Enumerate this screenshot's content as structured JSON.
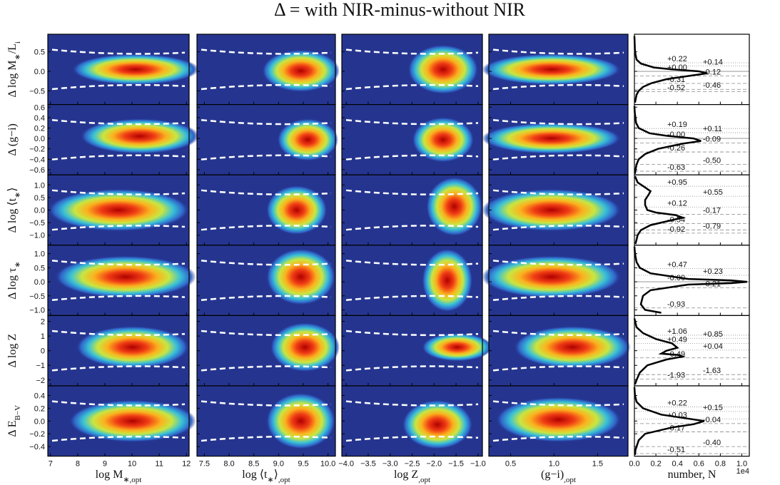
{
  "chart_data": {
    "type": "panel-grid",
    "title": "Δ = with NIR-minus-without NIR",
    "x_offset_label": "1e4",
    "columns": [
      {
        "xlabel": [
          "log M",
          "∗,opt"
        ],
        "xlim": [
          6.9,
          12.1
        ],
        "xticks": [
          7,
          8,
          9,
          10,
          11,
          12
        ]
      },
      {
        "xlabel": [
          "log ⟨t",
          "∗",
          "⟩",
          ",opt"
        ],
        "xlim": [
          7.35,
          10.15
        ],
        "xticks": [
          {
            "value": 7.5,
            "label": "7.5"
          },
          {
            "value": 8,
            "label": "8.0"
          },
          {
            "value": 8.5,
            "label": "8.5"
          },
          {
            "value": 9,
            "label": "9.0"
          },
          {
            "value": 9.5,
            "label": "9.5"
          },
          {
            "value": 10,
            "label": "10.0"
          }
        ]
      },
      {
        "xlabel": [
          "log Z",
          ",opt"
        ],
        "xlim": [
          -4.1,
          -0.9
        ],
        "xticks": [
          {
            "value": -4,
            "label": "−4.0"
          },
          {
            "value": -3.5,
            "label": "−3.5"
          },
          {
            "value": -3,
            "label": "−3.0"
          },
          {
            "value": -2.5,
            "label": "−2.5"
          },
          {
            "value": -2,
            "label": "−2.0"
          },
          {
            "value": -1.5,
            "label": "−1.5"
          },
          {
            "value": -1,
            "label": "−1.0"
          }
        ]
      },
      {
        "xlabel": [
          "(g−i)",
          ",opt"
        ],
        "xlim": [
          0.25,
          1.85
        ],
        "xticks": [
          {
            "value": 0.5,
            "label": "0.5"
          },
          {
            "value": 1,
            "label": "1.0"
          },
          {
            "value": 1.5,
            "label": "1.5"
          }
        ]
      },
      {
        "xlabel": [
          "number, N"
        ],
        "xlim": [
          0,
          1.07
        ],
        "xticks": [
          {
            "value": 0,
            "label": "0.0"
          },
          {
            "value": 0.2,
            "label": "0.2"
          },
          {
            "value": 0.4,
            "label": "0.4"
          },
          {
            "value": 0.6,
            "label": "0.6"
          },
          {
            "value": 0.8,
            "label": "0.8"
          },
          {
            "value": 1,
            "label": "1.0"
          }
        ]
      }
    ],
    "rows": [
      {
        "ylabel": [
          "Δ log M",
          "∗",
          "/L",
          "i"
        ],
        "ylim": [
          -0.85,
          0.95
        ],
        "yticks": [
          {
            "value": 0.5,
            "label": "0.5"
          },
          {
            "value": 0,
            "label": "0.0"
          },
          {
            "value": -0.5,
            "label": "−0.5"
          }
        ],
        "percentiles": [
          {
            "value": 0.22,
            "label": "+0.22"
          },
          {
            "value": 0.14,
            "label": "+0.14"
          },
          {
            "value": 0,
            "label": "+0.00"
          },
          {
            "value": -0.12,
            "label": "-0.12"
          },
          {
            "value": -0.31,
            "label": "-0.31"
          },
          {
            "value": -0.46,
            "label": "-0.46"
          },
          {
            "value": -0.52,
            "label": "-0.52"
          }
        ],
        "hist": {
          "y": [
            -0.8,
            -0.6,
            -0.5,
            -0.4,
            -0.3,
            -0.2,
            -0.1,
            -0.05,
            0,
            0.05,
            0.1,
            0.2,
            0.3,
            0.5,
            0.9
          ],
          "counts": [
            0.005,
            0.02,
            0.04,
            0.08,
            0.16,
            0.3,
            0.55,
            0.68,
            0.6,
            0.35,
            0.18,
            0.06,
            0.02,
            0.005,
            0
          ]
        }
      },
      {
        "ylabel": [
          "Δ (g−i)"
        ],
        "ylim": [
          -0.7,
          0.65
        ],
        "yticks": [
          {
            "value": 0.6,
            "label": "0.6"
          },
          {
            "value": 0.4,
            "label": "0.4"
          },
          {
            "value": 0.2,
            "label": "0.2"
          },
          {
            "value": 0,
            "label": "0.0"
          },
          {
            "value": -0.2,
            "label": "−0.2"
          },
          {
            "value": -0.4,
            "label": "−0.4"
          },
          {
            "value": -0.6,
            "label": "−0.6"
          }
        ],
        "percentiles": [
          {
            "value": 0.19,
            "label": "+0.19"
          },
          {
            "value": 0.11,
            "label": "+0.11"
          },
          {
            "value": 0,
            "label": "-0.00"
          },
          {
            "value": -0.09,
            "label": "-0.09"
          },
          {
            "value": -0.26,
            "label": "-0.26"
          },
          {
            "value": -0.5,
            "label": "-0.50"
          },
          {
            "value": -0.63,
            "label": "-0.63"
          }
        ],
        "hist": {
          "y": [
            -0.68,
            -0.6,
            -0.5,
            -0.4,
            -0.3,
            -0.2,
            -0.1,
            -0.05,
            0,
            0.05,
            0.1,
            0.2,
            0.3,
            0.5,
            0.62
          ],
          "counts": [
            0.005,
            0.01,
            0.02,
            0.04,
            0.1,
            0.22,
            0.45,
            0.62,
            0.55,
            0.3,
            0.14,
            0.04,
            0.015,
            0.003,
            0
          ]
        }
      },
      {
        "ylabel": [
          "Δ log ⟨t",
          "∗",
          "⟩"
        ],
        "ylim": [
          -1.4,
          1.4
        ],
        "yticks": [
          {
            "value": 1,
            "label": "1.0"
          },
          {
            "value": 0.5,
            "label": "0.5"
          },
          {
            "value": 0,
            "label": "0.0"
          },
          {
            "value": -0.5,
            "label": "−0.5"
          },
          {
            "value": -1,
            "label": "−1.0"
          }
        ],
        "percentiles": [
          {
            "value": 0.95,
            "label": "+0.95"
          },
          {
            "value": 0.55,
            "label": "+0.55"
          },
          {
            "value": 0.12,
            "label": "+0.12"
          },
          {
            "value": -0.17,
            "label": "-0.17"
          },
          {
            "value": -0.54,
            "label": "-0.54"
          },
          {
            "value": -0.79,
            "label": "-0.79"
          },
          {
            "value": -0.92,
            "label": "-0.92"
          }
        ],
        "hist": {
          "y": [
            -1.35,
            -1,
            -0.8,
            -0.6,
            -0.4,
            -0.3,
            -0.2,
            -0.1,
            0,
            0.2,
            0.4,
            0.6,
            0.75,
            0.9,
            1.1,
            1.35
          ],
          "counts": [
            0.01,
            0.03,
            0.06,
            0.15,
            0.35,
            0.45,
            0.38,
            0.2,
            0.12,
            0.1,
            0.1,
            0.13,
            0.15,
            0.1,
            0.03,
            0.005
          ]
        }
      },
      {
        "ylabel": [
          "Δ log τ",
          "∗"
        ],
        "ylim": [
          -1.2,
          1.3
        ],
        "yticks": [
          {
            "value": 1,
            "label": "1.0"
          },
          {
            "value": 0.5,
            "label": "0.5"
          },
          {
            "value": 0,
            "label": "0.0"
          },
          {
            "value": -0.5,
            "label": "−0.5"
          },
          {
            "value": -1,
            "label": "−1.0"
          }
        ],
        "percentiles": [
          {
            "value": 0.47,
            "label": "+0.47"
          },
          {
            "value": 0.23,
            "label": "+0.23"
          },
          {
            "value": 0,
            "label": "-0.00"
          },
          {
            "value": -0.21,
            "label": "-0.21"
          },
          {
            "value": -0.93,
            "label": "-0.93"
          }
        ],
        "hist": {
          "y": [
            -1.1,
            -1,
            -0.8,
            -0.5,
            -0.3,
            -0.1,
            -0.05,
            0,
            0.05,
            0.1,
            0.3,
            0.5,
            0.7,
            1,
            1.25
          ],
          "counts": [
            0.25,
            0.1,
            0.06,
            0.08,
            0.15,
            0.5,
            0.9,
            1.05,
            0.9,
            0.5,
            0.15,
            0.05,
            0.02,
            0.005,
            0
          ]
        }
      },
      {
        "ylabel": [
          "Δ log Z"
        ],
        "ylim": [
          -2.4,
          2.4
        ],
        "yticks": [
          2,
          1,
          0,
          {
            "value": -1,
            "label": "−1"
          },
          {
            "value": -2,
            "label": "−2"
          }
        ],
        "percentiles": [
          {
            "value": 1.06,
            "label": "+1.06"
          },
          {
            "value": 0.85,
            "label": "+0.85"
          },
          {
            "value": 0.49,
            "label": "+0.49"
          },
          {
            "value": 0.04,
            "label": "+0.04"
          },
          {
            "value": -0.49,
            "label": "-0.49"
          },
          {
            "value": -1.63,
            "label": "-1.63"
          },
          {
            "value": -1.93,
            "label": "-1.93"
          }
        ],
        "hist": {
          "y": [
            -2.3,
            -2,
            -1.5,
            -1,
            -0.6,
            -0.4,
            -0.3,
            -0.2,
            0,
            0.2,
            0.5,
            0.8,
            1.2,
            1.6,
            2.2
          ],
          "counts": [
            0.005,
            0.02,
            0.05,
            0.12,
            0.3,
            0.45,
            0.42,
            0.25,
            0.3,
            0.4,
            0.35,
            0.2,
            0.08,
            0.02,
            0
          ]
        }
      },
      {
        "ylabel": [
          "Δ E",
          "B−V"
        ],
        "ylim": [
          -0.55,
          0.55
        ],
        "yticks": [
          {
            "value": 0.4,
            "label": "0.4"
          },
          {
            "value": 0.2,
            "label": "0.2"
          },
          {
            "value": 0,
            "label": "0.0"
          },
          {
            "value": -0.2,
            "label": "−0.2"
          },
          {
            "value": -0.4,
            "label": "−0.4"
          }
        ],
        "percentiles": [
          {
            "value": 0.22,
            "label": "+0.22"
          },
          {
            "value": 0.15,
            "label": "+0.15"
          },
          {
            "value": 0.03,
            "label": "+0.03"
          },
          {
            "value": -0.04,
            "label": "-0.04"
          },
          {
            "value": -0.17,
            "label": "-0.17"
          },
          {
            "value": -0.4,
            "label": "-0.40"
          },
          {
            "value": -0.51,
            "label": "-0.51"
          }
        ],
        "hist": {
          "y": [
            -0.53,
            -0.45,
            -0.3,
            -0.2,
            -0.1,
            -0.05,
            0,
            0.05,
            0.1,
            0.2,
            0.3,
            0.4,
            0.53
          ],
          "counts": [
            0.005,
            0.01,
            0.04,
            0.1,
            0.35,
            0.55,
            0.65,
            0.45,
            0.25,
            0.08,
            0.02,
            0.005,
            0
          ]
        }
      }
    ]
  }
}
